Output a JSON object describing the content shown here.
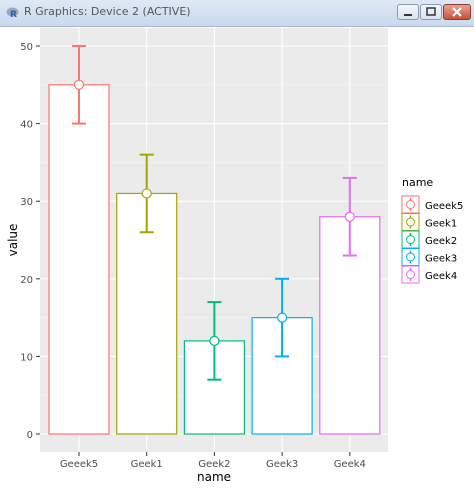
{
  "window": {
    "title": "R Graphics: Device 2 (ACTIVE)",
    "buttons": [
      "minimize",
      "restore",
      "close"
    ]
  },
  "chart_data": {
    "type": "bar",
    "xlabel": "name",
    "ylabel": "value",
    "categories": [
      "Geeek5",
      "Geek1",
      "Geek2",
      "Geek3",
      "Geek4"
    ],
    "values": [
      45,
      31,
      12,
      15,
      28
    ],
    "error_lower": [
      40,
      26,
      7,
      10,
      23
    ],
    "error_upper": [
      50,
      36,
      17,
      20,
      33
    ],
    "colors": [
      "#F8766D",
      "#A3A500",
      "#00BF7D",
      "#00B0F6",
      "#E76BF3"
    ],
    "ylim": [
      0,
      53
    ],
    "yticks": [
      0,
      10,
      20,
      30,
      40,
      50
    ],
    "grid": true,
    "panel_background": "#EBEBEB",
    "legend": {
      "title": "name",
      "position": "right",
      "entries": [
        "Geeek5",
        "Geek1",
        "Geek2",
        "Geek3",
        "Geek4"
      ]
    }
  }
}
